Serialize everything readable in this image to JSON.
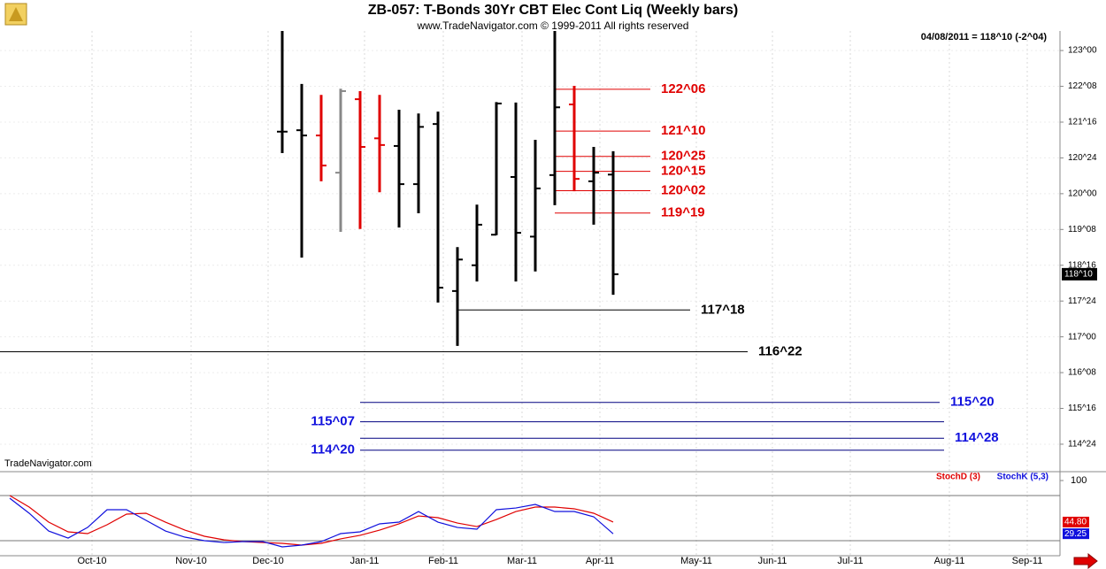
{
  "chart_data": [
    {
      "type": "ohlc",
      "title": "ZB-057:  T-Bonds 30Yr CBT Elec Cont Liq  (Weekly bars)",
      "subtitle": "www.TradeNavigator.com © 1999-2011 All rights reserved",
      "note": "04/08/2011 = 118^10 (-2^04)",
      "watermark": "TradeNavigator.com",
      "series": {
        "open": [
          121.3,
          121.33,
          121.22,
          120.44,
          121.98,
          121.16,
          121.0,
          120.2,
          121.46,
          117.96,
          118.5,
          119.14,
          120.35,
          119.1,
          120.39,
          121.87,
          120.26,
          120.4
        ],
        "high": [
          123.41,
          122.3,
          122.07,
          122.2,
          122.15,
          122.07,
          121.76,
          121.68,
          121.72,
          118.88,
          119.77,
          121.92,
          121.91,
          121.13,
          123.41,
          122.26,
          120.98,
          120.89
        ],
        "low": [
          120.85,
          118.66,
          120.26,
          119.2,
          119.26,
          120.03,
          119.29,
          119.59,
          117.72,
          116.81,
          118.16,
          119.13,
          118.16,
          118.37,
          119.76,
          120.05,
          119.35,
          117.88
        ],
        "close": [
          121.3,
          121.22,
          120.59,
          122.15,
          120.98,
          121.02,
          120.2,
          121.4,
          118.03,
          118.62,
          119.35,
          121.89,
          119.18,
          120.11,
          121.81,
          120.31,
          120.44,
          118.3125
        ],
        "colors": [
          "#000000",
          "#000000",
          "#e00000",
          "#888888",
          "#e00000",
          "#e00000",
          "#000000",
          "#000000",
          "#000000",
          "#000000",
          "#000000",
          "#000000",
          "#000000",
          "#000000",
          "#000000",
          "#e00000",
          "#000000",
          "#000000"
        ]
      },
      "ylim": [
        114.23,
        123.41
      ],
      "yticks": [
        {
          "value": 114.75,
          "label": "114^24"
        },
        {
          "value": 115.5,
          "label": "115^16"
        },
        {
          "value": 116.25,
          "label": "116^08"
        },
        {
          "value": 117,
          "label": "117^00"
        },
        {
          "value": 117.75,
          "label": "117^24"
        },
        {
          "value": 118.5,
          "label": "118^16"
        },
        {
          "value": 119.25,
          "label": "119^08"
        },
        {
          "value": 120,
          "label": "120^00"
        },
        {
          "value": 120.75,
          "label": "120^24"
        },
        {
          "value": 121.5,
          "label": "121^16"
        },
        {
          "value": 122.25,
          "label": "122^08"
        },
        {
          "value": 123,
          "label": "123^00"
        }
      ],
      "grid": true,
      "last_price": {
        "value": 118.3125,
        "label": "118^10"
      },
      "levels": [
        {
          "value": 122.1875,
          "label": "122^06",
          "color": "#e00000"
        },
        {
          "value": 121.3125,
          "label": "121^10",
          "color": "#e00000"
        },
        {
          "value": 120.78125,
          "label": "120^25",
          "color": "#e00000"
        },
        {
          "value": 120.46875,
          "label": "120^15",
          "color": "#e00000"
        },
        {
          "value": 120.0625,
          "label": "120^02",
          "color": "#e00000"
        },
        {
          "value": 119.59375,
          "label": "119^19",
          "color": "#e00000"
        },
        {
          "value": 117.5625,
          "label": "117^18",
          "color": "#000000"
        },
        {
          "value": 116.6875,
          "label": "116^22",
          "color": "#000000"
        },
        {
          "value": 115.625,
          "label": "115^20",
          "color": "#1010dd"
        },
        {
          "value": 115.21875,
          "label": "115^07",
          "color": "#1010dd"
        },
        {
          "value": 114.875,
          "label": "114^28",
          "color": "#1010dd"
        },
        {
          "value": 114.625,
          "label": "114^20",
          "color": "#1010dd"
        }
      ],
      "xticks": [
        "Oct-10",
        "Nov-10",
        "Dec-10",
        "Jan-11",
        "Feb-11",
        "Mar-11",
        "Apr-11",
        "May-11",
        "Jun-11",
        "Jul-11",
        "Aug-11",
        "Sep-11"
      ]
    },
    {
      "type": "line",
      "series": [
        {
          "name": "StochD (3)",
          "color": "#e00000",
          "last_label": "44.80",
          "values": [
            80.0,
            64.7,
            44.7,
            31.8,
            29.4,
            41.2,
            55.3,
            56.5,
            44.7,
            34.1,
            25.9,
            21.2,
            18.8,
            17.6,
            16.5,
            14.1,
            16.5,
            22.4,
            27.1,
            34.1,
            42.4,
            52.9,
            50.6,
            43.5,
            38.8,
            48.2,
            58.8,
            64.7,
            64.7,
            62.4,
            56.5,
            44.8
          ]
        },
        {
          "name": "StochK (5,3)",
          "color": "#1010dd",
          "values": [
            76.5,
            56.5,
            32.9,
            23.5,
            37.6,
            61.2,
            61.2,
            47.1,
            32.9,
            24.7,
            20.0,
            17.6,
            18.8,
            18.8,
            11.8,
            14.1,
            18.8,
            29.4,
            31.8,
            42.4,
            44.7,
            58.8,
            44.7,
            37.6,
            35.3,
            61.2,
            63.5,
            68.2,
            58.8,
            58.8,
            51.8,
            29.25
          ]
        }
      ],
      "ylim": [
        0,
        111.8
      ],
      "yticks": [
        100
      ],
      "ref_lines": [
        80,
        20
      ]
    }
  ]
}
